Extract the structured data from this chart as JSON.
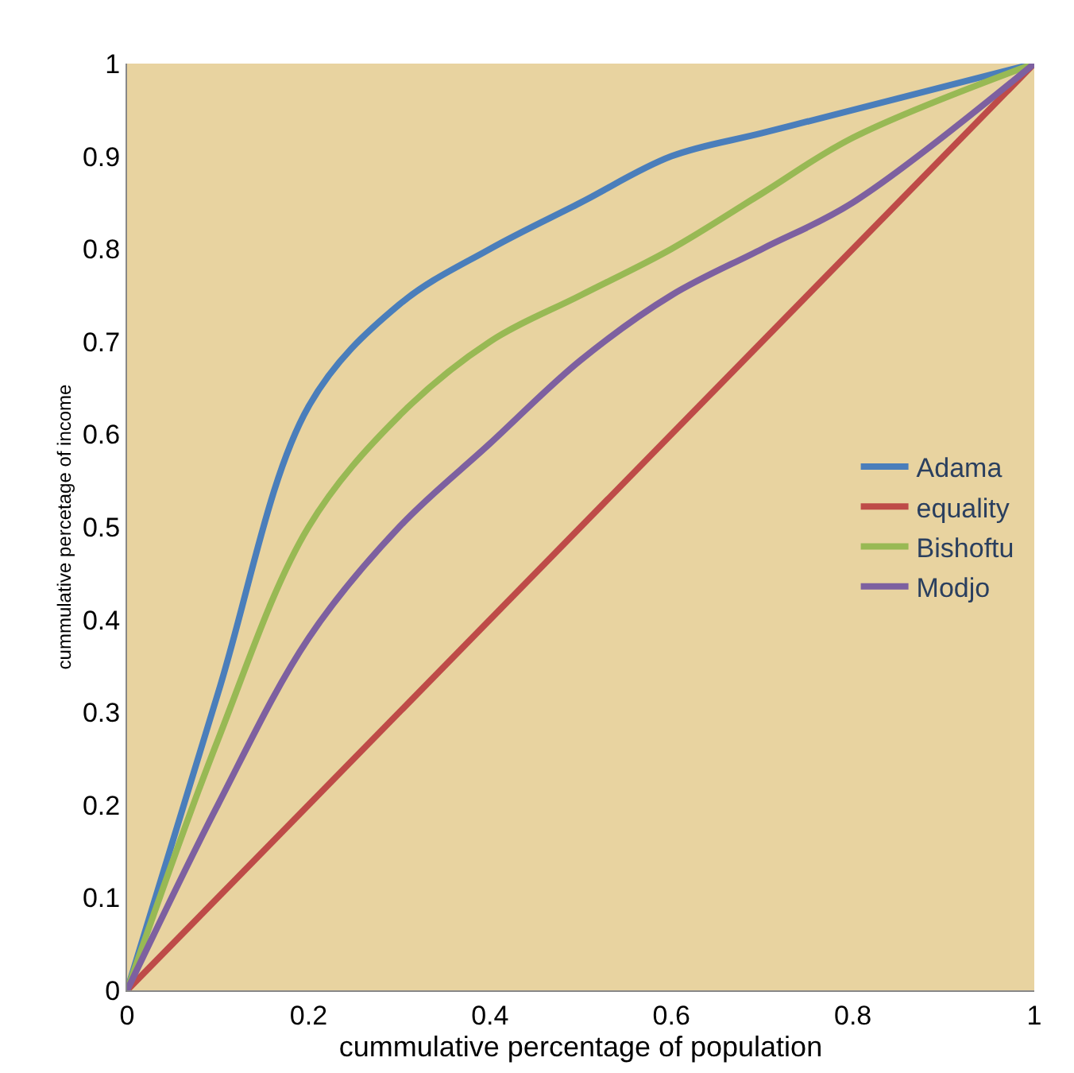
{
  "chart_data": {
    "type": "line",
    "xlabel": "cummulative percentage of population",
    "ylabel": "cummulative percetage of income",
    "x": [
      0,
      0.1,
      0.2,
      0.3,
      0.4,
      0.5,
      0.6,
      0.7,
      0.8,
      1
    ],
    "series": [
      {
        "name": "Adama",
        "color": "#4a7ebb",
        "values": [
          0,
          0.32,
          0.63,
          0.74,
          0.8,
          0.85,
          0.9,
          0.925,
          0.95,
          1
        ]
      },
      {
        "name": "equality",
        "color": "#be4b48",
        "x": [
          0,
          1
        ],
        "values": [
          0,
          1
        ]
      },
      {
        "name": "Bishoftu",
        "color": "#98b954",
        "values": [
          0,
          0.27,
          0.5,
          0.62,
          0.7,
          0.75,
          0.8,
          0.86,
          0.92,
          1
        ]
      },
      {
        "name": "Modjo",
        "color": "#7d60a0",
        "values": [
          0,
          0.2,
          0.38,
          0.5,
          0.59,
          0.68,
          0.75,
          0.8,
          0.85,
          1
        ]
      }
    ],
    "xlim": [
      0,
      1
    ],
    "ylim": [
      0,
      1
    ],
    "xticks": [
      0,
      0.2,
      0.4,
      0.6,
      0.8,
      1
    ],
    "yticks": [
      0,
      0.1,
      0.2,
      0.3,
      0.4,
      0.5,
      0.6,
      0.7,
      0.8,
      0.9,
      1
    ],
    "grid": false,
    "legend": "right",
    "marker": "none",
    "line_style": "solid"
  }
}
